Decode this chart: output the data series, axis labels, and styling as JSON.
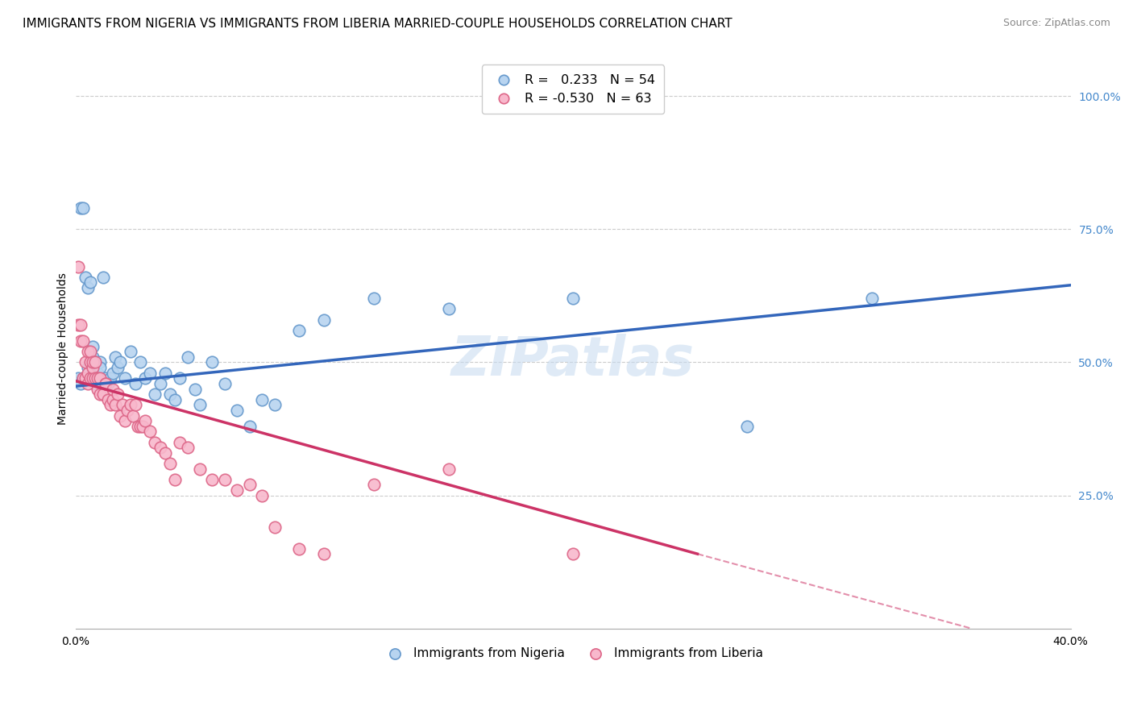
{
  "title": "IMMIGRANTS FROM NIGERIA VS IMMIGRANTS FROM LIBERIA MARRIED-COUPLE HOUSEHOLDS CORRELATION CHART",
  "source": "Source: ZipAtlas.com",
  "ylabel": "Married-couple Households",
  "legend_nigeria": "Immigrants from Nigeria",
  "legend_liberia": "Immigrants from Liberia",
  "R_nigeria": 0.233,
  "N_nigeria": 54,
  "R_liberia": -0.53,
  "N_liberia": 63,
  "nigeria_color": "#b8d4f0",
  "nigeria_edge": "#6699cc",
  "liberia_color": "#f8b8cc",
  "liberia_edge": "#dd6688",
  "trend_nigeria_color": "#3366bb",
  "trend_liberia_color": "#cc3366",
  "watermark": "ZIPatlas",
  "nigeria_x": [
    0.001,
    0.002,
    0.002,
    0.003,
    0.003,
    0.004,
    0.004,
    0.005,
    0.005,
    0.006,
    0.006,
    0.007,
    0.007,
    0.008,
    0.008,
    0.009,
    0.01,
    0.01,
    0.011,
    0.012,
    0.013,
    0.014,
    0.015,
    0.016,
    0.017,
    0.018,
    0.02,
    0.022,
    0.024,
    0.026,
    0.028,
    0.03,
    0.032,
    0.034,
    0.036,
    0.038,
    0.04,
    0.042,
    0.045,
    0.048,
    0.05,
    0.055,
    0.06,
    0.065,
    0.07,
    0.075,
    0.08,
    0.09,
    0.1,
    0.12,
    0.15,
    0.2,
    0.27,
    0.32
  ],
  "nigeria_y": [
    0.47,
    0.46,
    0.79,
    0.79,
    0.47,
    0.66,
    0.47,
    0.64,
    0.49,
    0.65,
    0.5,
    0.53,
    0.51,
    0.5,
    0.46,
    0.48,
    0.5,
    0.49,
    0.66,
    0.47,
    0.46,
    0.47,
    0.48,
    0.51,
    0.49,
    0.5,
    0.47,
    0.52,
    0.46,
    0.5,
    0.47,
    0.48,
    0.44,
    0.46,
    0.48,
    0.44,
    0.43,
    0.47,
    0.51,
    0.45,
    0.42,
    0.5,
    0.46,
    0.41,
    0.38,
    0.43,
    0.42,
    0.56,
    0.58,
    0.62,
    0.6,
    0.62,
    0.38,
    0.62
  ],
  "liberia_x": [
    0.001,
    0.001,
    0.002,
    0.002,
    0.003,
    0.003,
    0.004,
    0.004,
    0.005,
    0.005,
    0.005,
    0.006,
    0.006,
    0.006,
    0.007,
    0.007,
    0.007,
    0.008,
    0.008,
    0.009,
    0.009,
    0.01,
    0.01,
    0.011,
    0.012,
    0.012,
    0.013,
    0.014,
    0.015,
    0.015,
    0.016,
    0.017,
    0.018,
    0.019,
    0.02,
    0.021,
    0.022,
    0.023,
    0.024,
    0.025,
    0.026,
    0.027,
    0.028,
    0.03,
    0.032,
    0.034,
    0.036,
    0.038,
    0.04,
    0.042,
    0.045,
    0.05,
    0.055,
    0.06,
    0.065,
    0.07,
    0.075,
    0.08,
    0.09,
    0.1,
    0.12,
    0.15,
    0.2
  ],
  "liberia_y": [
    0.68,
    0.57,
    0.57,
    0.54,
    0.47,
    0.54,
    0.47,
    0.5,
    0.52,
    0.48,
    0.46,
    0.47,
    0.5,
    0.52,
    0.47,
    0.49,
    0.5,
    0.47,
    0.5,
    0.47,
    0.45,
    0.47,
    0.44,
    0.44,
    0.46,
    0.46,
    0.43,
    0.42,
    0.43,
    0.45,
    0.42,
    0.44,
    0.4,
    0.42,
    0.39,
    0.41,
    0.42,
    0.4,
    0.42,
    0.38,
    0.38,
    0.38,
    0.39,
    0.37,
    0.35,
    0.34,
    0.33,
    0.31,
    0.28,
    0.35,
    0.34,
    0.3,
    0.28,
    0.28,
    0.26,
    0.27,
    0.25,
    0.19,
    0.15,
    0.14,
    0.27,
    0.3,
    0.14
  ],
  "xmin": 0.0,
  "xmax": 0.4,
  "ymin": 0.0,
  "ymax": 1.05,
  "trend_ng_x0": 0.0,
  "trend_ng_y0": 0.455,
  "trend_ng_x1": 0.4,
  "trend_ng_y1": 0.645,
  "trend_lb_x0": 0.0,
  "trend_lb_y0": 0.465,
  "trend_lb_x1": 0.25,
  "trend_lb_y1": 0.14,
  "trend_lb_dash_x0": 0.25,
  "trend_lb_dash_y0": 0.14,
  "trend_lb_dash_x1": 0.36,
  "trend_lb_dash_y1": 0.0,
  "title_fontsize": 11,
  "axis_label_fontsize": 10,
  "tick_fontsize": 10,
  "source_fontsize": 9
}
